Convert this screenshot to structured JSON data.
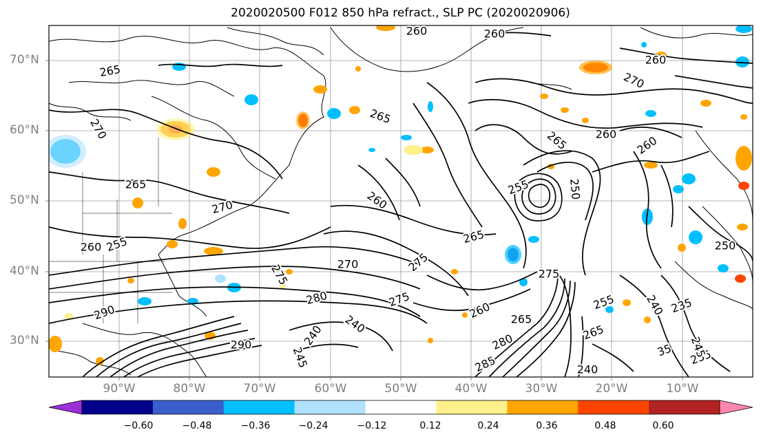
{
  "title": "2020020500 F012 850 hPa refract., SLP PC (2020020906)",
  "lat_labels": [
    "70°N",
    "60°N",
    "50°N",
    "40°N",
    "30°N"
  ],
  "lon_labels": [
    "90°W",
    "80°W",
    "70°W",
    "60°W",
    "50°W",
    "40°W",
    "30°W",
    "20°W",
    "10°W"
  ],
  "colorbar": {
    "ticks": [
      "−0.60",
      "−0.48",
      "−0.36",
      "−0.24",
      "−0.12",
      "0.12",
      "0.24",
      "0.36",
      "0.48",
      "0.60"
    ],
    "colors": [
      "#9b30d8",
      "#00008b",
      "#3a5fcd",
      "#00bfff",
      "#b0e2ff",
      "#ffffff",
      "#fff08c",
      "#ffa500",
      "#ff4500",
      "#b22222",
      "#ff86b0"
    ]
  },
  "contour_labels": [
    {
      "text": "260"
    },
    {
      "text": "260"
    },
    {
      "text": "260"
    },
    {
      "text": "265"
    },
    {
      "text": "270"
    },
    {
      "text": "270"
    },
    {
      "text": "265"
    },
    {
      "text": "265"
    },
    {
      "text": "270"
    },
    {
      "text": "260"
    },
    {
      "text": "255"
    },
    {
      "text": "265"
    },
    {
      "text": "275"
    },
    {
      "text": "250"
    },
    {
      "text": "260"
    },
    {
      "text": "260"
    },
    {
      "text": "265"
    },
    {
      "text": "270"
    },
    {
      "text": "275"
    },
    {
      "text": "280"
    },
    {
      "text": "290"
    },
    {
      "text": "275"
    },
    {
      "text": "240"
    },
    {
      "text": "240"
    },
    {
      "text": "245"
    },
    {
      "text": "290"
    },
    {
      "text": "260"
    },
    {
      "text": "265"
    },
    {
      "text": "280"
    },
    {
      "text": "285"
    },
    {
      "text": "275"
    },
    {
      "text": "255"
    },
    {
      "text": "265"
    },
    {
      "text": "240"
    },
    {
      "text": "235"
    },
    {
      "text": "250"
    },
    {
      "text": "235"
    },
    {
      "text": "245"
    },
    {
      "text": "35"
    },
    {
      "text": "240"
    },
    {
      "text": "260"
    },
    {
      "text": "255"
    }
  ]
}
